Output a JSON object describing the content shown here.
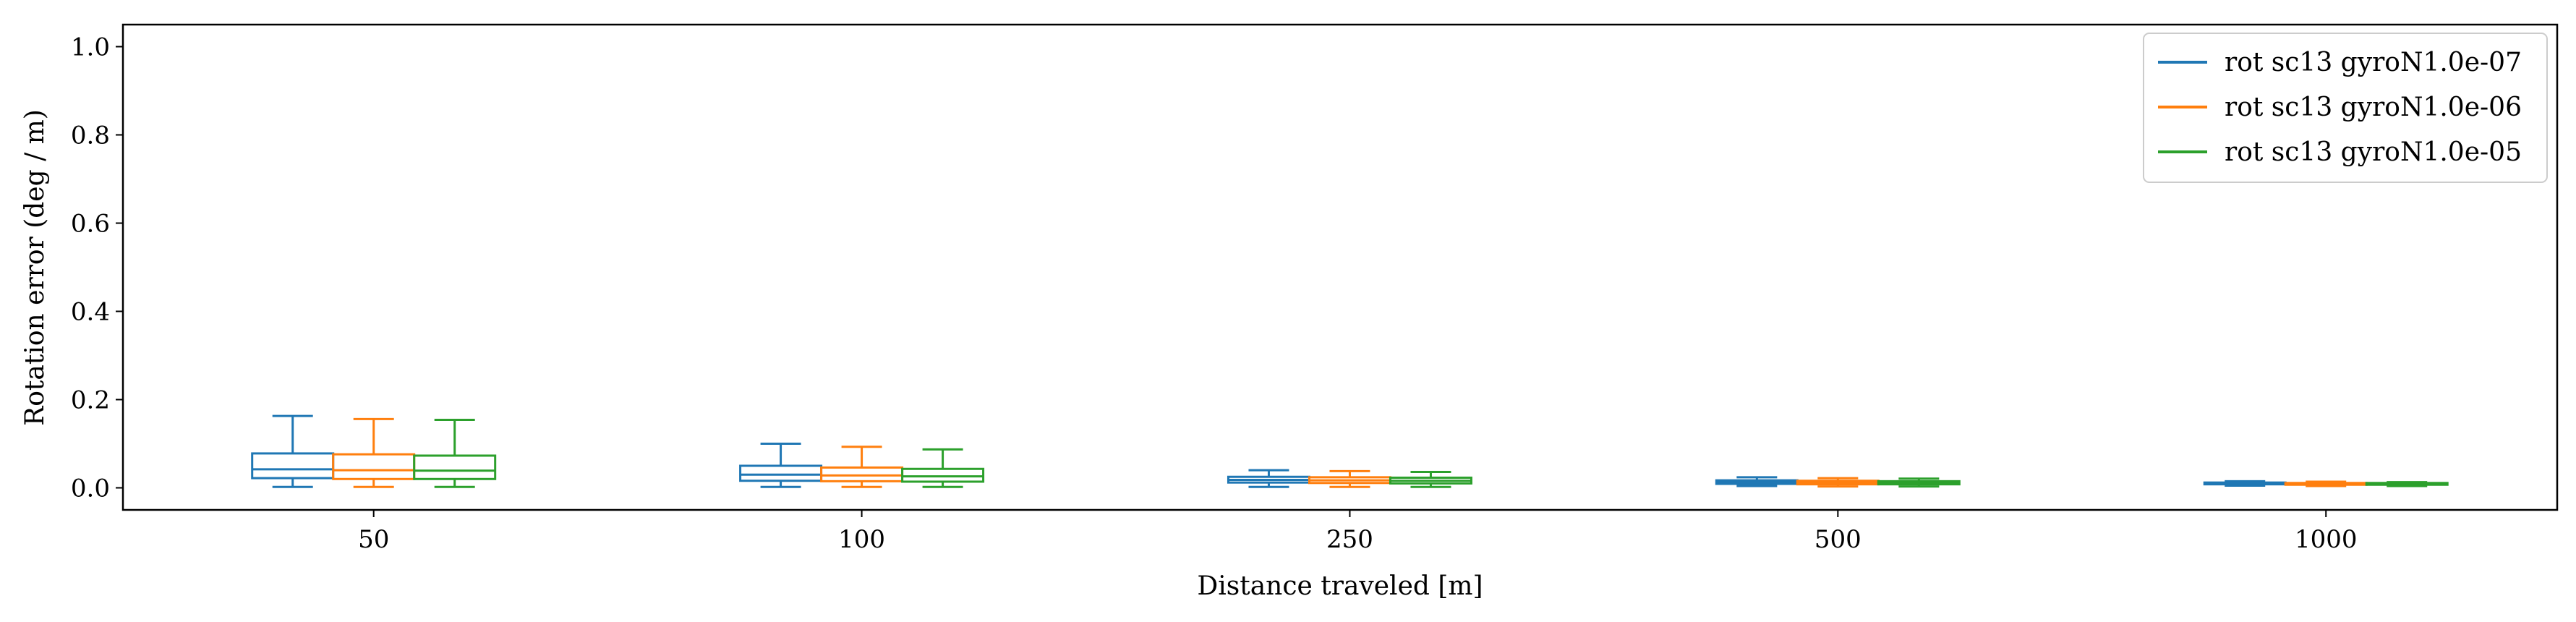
{
  "chart_data": {
    "type": "box",
    "xlabel": "Distance traveled [m]",
    "ylabel": "Rotation error (deg / m)",
    "categories": [
      "50",
      "100",
      "250",
      "500",
      "1000"
    ],
    "ylim": [
      -0.05,
      1.05
    ],
    "yticks": [
      "0.0",
      "0.2",
      "0.4",
      "0.6",
      "0.8",
      "1.0"
    ],
    "grid": false,
    "legend_position": "top-right",
    "series": [
      {
        "name": "rot sc13 gyroN1.0e-07",
        "color": "#1f77b4",
        "boxes": [
          {
            "whislo": 0.002,
            "q1": 0.022,
            "med": 0.042,
            "q3": 0.078,
            "whishi": 0.163
          },
          {
            "whislo": 0.002,
            "q1": 0.016,
            "med": 0.03,
            "q3": 0.05,
            "whishi": 0.1
          },
          {
            "whislo": 0.002,
            "q1": 0.012,
            "med": 0.018,
            "q3": 0.025,
            "whishi": 0.04
          },
          {
            "whislo": 0.004,
            "q1": 0.009,
            "med": 0.013,
            "q3": 0.017,
            "whishi": 0.024
          },
          {
            "whislo": 0.005,
            "q1": 0.008,
            "med": 0.01,
            "q3": 0.012,
            "whishi": 0.015
          }
        ]
      },
      {
        "name": "rot sc13 gyroN1.0e-06",
        "color": "#ff7f0e",
        "boxes": [
          {
            "whislo": 0.002,
            "q1": 0.02,
            "med": 0.04,
            "q3": 0.076,
            "whishi": 0.156
          },
          {
            "whislo": 0.002,
            "q1": 0.015,
            "med": 0.028,
            "q3": 0.046,
            "whishi": 0.093
          },
          {
            "whislo": 0.002,
            "q1": 0.011,
            "med": 0.017,
            "q3": 0.024,
            "whishi": 0.038
          },
          {
            "whislo": 0.003,
            "q1": 0.008,
            "med": 0.012,
            "q3": 0.016,
            "whishi": 0.022
          },
          {
            "whislo": 0.004,
            "q1": 0.007,
            "med": 0.009,
            "q3": 0.011,
            "whishi": 0.014
          }
        ]
      },
      {
        "name": "rot sc13 gyroN1.0e-05",
        "color": "#2ca02c",
        "boxes": [
          {
            "whislo": 0.002,
            "q1": 0.02,
            "med": 0.039,
            "q3": 0.073,
            "whishi": 0.154
          },
          {
            "whislo": 0.002,
            "q1": 0.014,
            "med": 0.026,
            "q3": 0.043,
            "whishi": 0.087
          },
          {
            "whislo": 0.002,
            "q1": 0.01,
            "med": 0.016,
            "q3": 0.023,
            "whishi": 0.036
          },
          {
            "whislo": 0.003,
            "q1": 0.008,
            "med": 0.011,
            "q3": 0.015,
            "whishi": 0.021
          },
          {
            "whislo": 0.004,
            "q1": 0.007,
            "med": 0.009,
            "q3": 0.011,
            "whishi": 0.013
          }
        ]
      }
    ]
  }
}
